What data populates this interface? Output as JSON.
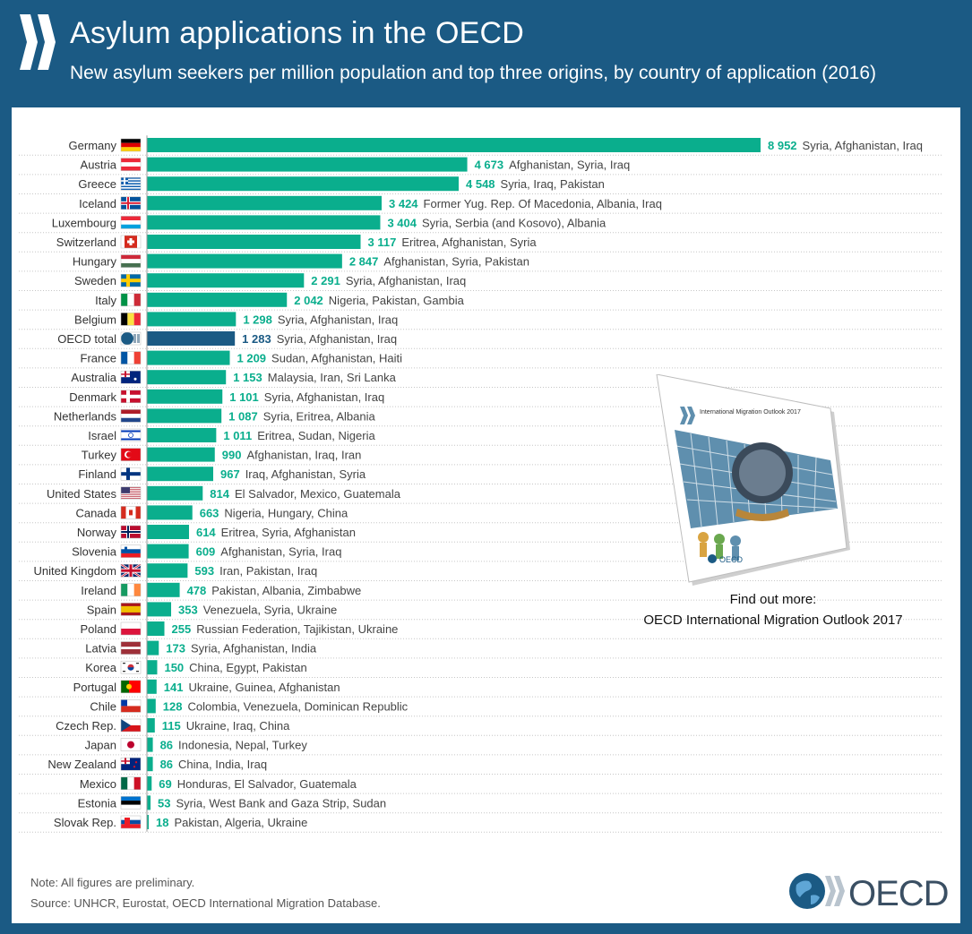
{
  "header": {
    "title": "Asylum applications in the OECD",
    "subtitle": "New asylum seekers per million population and top three origins, by country of application (2016)"
  },
  "chart_data": {
    "type": "bar",
    "orientation": "horizontal",
    "title": "Asylum applications in the OECD",
    "subtitle": "New asylum seekers per million population and top three origins, by country of application (2016)",
    "xlabel": "",
    "ylabel": "",
    "xlim": [
      0,
      8952
    ],
    "grid": false,
    "colors": {
      "bar": "#0aae8d",
      "highlight_bar": "#1b5a84",
      "value_label": "#0aae8d",
      "highlight_label": "#1b5a84"
    },
    "rows": [
      {
        "country": "Germany",
        "value": 8952,
        "label": "8 952",
        "origins": "Syria, Afghanistan, Iraq"
      },
      {
        "country": "Austria",
        "value": 4673,
        "label": "4 673",
        "origins": "Afghanistan, Syria, Iraq"
      },
      {
        "country": "Greece",
        "value": 4548,
        "label": "4 548",
        "origins": "Syria, Iraq, Pakistan"
      },
      {
        "country": "Iceland",
        "value": 3424,
        "label": "3 424",
        "origins": "Former Yug. Rep. Of Macedonia, Albania, Iraq"
      },
      {
        "country": "Luxembourg",
        "value": 3404,
        "label": "3 404",
        "origins": "Syria, Serbia (and Kosovo), Albania"
      },
      {
        "country": "Switzerland",
        "value": 3117,
        "label": "3 117",
        "origins": "Eritrea, Afghanistan, Syria"
      },
      {
        "country": "Hungary",
        "value": 2847,
        "label": "2 847",
        "origins": "Afghanistan, Syria, Pakistan"
      },
      {
        "country": "Sweden",
        "value": 2291,
        "label": "2 291",
        "origins": "Syria, Afghanistan, Iraq"
      },
      {
        "country": "Italy",
        "value": 2042,
        "label": "2 042",
        "origins": "Nigeria, Pakistan, Gambia"
      },
      {
        "country": "Belgium",
        "value": 1298,
        "label": "1 298",
        "origins": "Syria, Afghanistan, Iraq"
      },
      {
        "country": "OECD total",
        "value": 1283,
        "label": "1 283",
        "origins": "Syria, Afghanistan, Iraq",
        "highlight": true
      },
      {
        "country": "France",
        "value": 1209,
        "label": "1 209",
        "origins": "Sudan, Afghanistan, Haiti"
      },
      {
        "country": "Australia",
        "value": 1153,
        "label": "1 153",
        "origins": "Malaysia, Iran, Sri Lanka"
      },
      {
        "country": "Denmark",
        "value": 1101,
        "label": "1 101",
        "origins": "Syria, Afghanistan, Iraq"
      },
      {
        "country": "Netherlands",
        "value": 1087,
        "label": "1 087",
        "origins": "Syria, Eritrea, Albania"
      },
      {
        "country": "Israel",
        "value": 1011,
        "label": "1 011",
        "origins": "Eritrea, Sudan, Nigeria"
      },
      {
        "country": "Turkey",
        "value": 990,
        "label": "990",
        "origins": "Afghanistan, Iraq, Iran"
      },
      {
        "country": "Finland",
        "value": 967,
        "label": "967",
        "origins": "Iraq, Afghanistan, Syria"
      },
      {
        "country": "United States",
        "value": 814,
        "label": "814",
        "origins": "El Salvador, Mexico, Guatemala"
      },
      {
        "country": "Canada",
        "value": 663,
        "label": "663",
        "origins": "Nigeria, Hungary, China"
      },
      {
        "country": "Norway",
        "value": 614,
        "label": "614",
        "origins": "Eritrea, Syria, Afghanistan"
      },
      {
        "country": "Slovenia",
        "value": 609,
        "label": "609",
        "origins": "Afghanistan, Syria, Iraq"
      },
      {
        "country": "United Kingdom",
        "value": 593,
        "label": "593",
        "origins": "Iran, Pakistan, Iraq"
      },
      {
        "country": "Ireland",
        "value": 478,
        "label": "478",
        "origins": "Pakistan, Albania, Zimbabwe"
      },
      {
        "country": "Spain",
        "value": 353,
        "label": "353",
        "origins": "Venezuela, Syria, Ukraine"
      },
      {
        "country": "Poland",
        "value": 255,
        "label": "255",
        "origins": "Russian Federation, Tajikistan, Ukraine"
      },
      {
        "country": "Latvia",
        "value": 173,
        "label": "173",
        "origins": "Syria, Afghanistan, India"
      },
      {
        "country": "Korea",
        "value": 150,
        "label": "150",
        "origins": "China, Egypt, Pakistan"
      },
      {
        "country": "Portugal",
        "value": 141,
        "label": "141",
        "origins": "Ukraine, Guinea, Afghanistan"
      },
      {
        "country": "Chile",
        "value": 128,
        "label": "128",
        "origins": "Colombia, Venezuela, Dominican Republic"
      },
      {
        "country": "Czech Rep.",
        "value": 115,
        "label": "115",
        "origins": "Ukraine, Iraq, China"
      },
      {
        "country": "Japan",
        "value": 86,
        "label": "86",
        "origins": "Indonesia, Nepal, Turkey"
      },
      {
        "country": "New Zealand",
        "value": 86,
        "label": "86",
        "origins": "China, India, Iraq"
      },
      {
        "country": "Mexico",
        "value": 69,
        "label": "69",
        "origins": "Honduras, El Salvador, Guatemala"
      },
      {
        "country": "Estonia",
        "value": 53,
        "label": "53",
        "origins": "Syria, West Bank and Gaza Strip, Sudan"
      },
      {
        "country": "Slovak Rep.",
        "value": 18,
        "label": "18",
        "origins": "Pakistan, Algeria, Ukraine"
      }
    ]
  },
  "promo": {
    "book_title": "International Migration Outlook 2017",
    "book_logo": "OECD",
    "line1": "Find out more:",
    "line2": "OECD International Migration Outlook 2017"
  },
  "footer": {
    "note": "Note: All figures are preliminary.",
    "source": "Source: UNHCR, Eurostat, OECD International Migration Database.",
    "logo_text": "OECD"
  }
}
